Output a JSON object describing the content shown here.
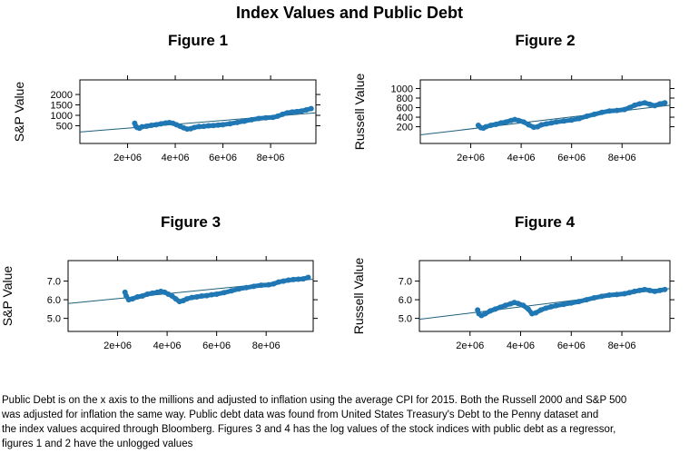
{
  "title": "Index Values and Public Debt",
  "caption": [
    "Public Debt is on the x axis to the millions and adjusted to inflation using the average CPI for 2015. Both the Russell 2000 and S&P 500",
    "was adjusted for inflation the same way. Public debt data was found from United States Treasury's Debt to the Penny dataset and",
    "the index values acquired through Bloomberg. Figures 3 and 4 has the log values of the stock indices with public debt as a regressor,",
    "figures 1 and 2 have the unlogged values"
  ],
  "colors": {
    "series": "#1f77b4",
    "fit_line": "#1f5f7a",
    "axes": "#000000"
  },
  "chart_data": [
    {
      "type": "scatter",
      "title": "Figure 1",
      "xlabel": "",
      "ylabel": "S&P Value",
      "xlim": [
        0,
        9900000
      ],
      "ylim": [
        -350,
        2700
      ],
      "xticks": [
        2000000,
        4000000,
        6000000,
        8000000
      ],
      "xtick_labels": [
        "2e+06",
        "4e+06",
        "6e+06",
        "8e+06"
      ],
      "yticks": [
        500,
        1000,
        1500,
        2000
      ],
      "ytick_labels": [
        "500",
        "1000",
        "1500",
        "2000"
      ],
      "fit_line": {
        "x": [
          0,
          9900000
        ],
        "y": [
          200,
          1120
        ]
      },
      "points": [
        [
          2300000,
          620
        ],
        [
          2350000,
          470
        ],
        [
          2400000,
          420
        ],
        [
          2500000,
          380
        ],
        [
          2600000,
          450
        ],
        [
          2800000,
          480
        ],
        [
          3000000,
          520
        ],
        [
          3200000,
          550
        ],
        [
          3400000,
          590
        ],
        [
          3600000,
          630
        ],
        [
          3750000,
          650
        ],
        [
          3900000,
          620
        ],
        [
          4050000,
          550
        ],
        [
          4200000,
          480
        ],
        [
          4350000,
          400
        ],
        [
          4500000,
          340
        ],
        [
          4650000,
          360
        ],
        [
          4800000,
          420
        ],
        [
          5000000,
          460
        ],
        [
          5200000,
          470
        ],
        [
          5400000,
          500
        ],
        [
          5600000,
          510
        ],
        [
          5800000,
          530
        ],
        [
          6000000,
          550
        ],
        [
          6300000,
          600
        ],
        [
          6600000,
          660
        ],
        [
          6900000,
          720
        ],
        [
          7200000,
          790
        ],
        [
          7500000,
          850
        ],
        [
          7800000,
          880
        ],
        [
          8100000,
          900
        ],
        [
          8300000,
          960
        ],
        [
          8500000,
          1050
        ],
        [
          8700000,
          1120
        ],
        [
          8900000,
          1160
        ],
        [
          9100000,
          1180
        ],
        [
          9300000,
          1210
        ],
        [
          9500000,
          1260
        ],
        [
          9700000,
          1320
        ]
      ]
    },
    {
      "type": "scatter",
      "title": "Figure 2",
      "xlabel": "",
      "ylabel": "Russell Value",
      "xlim": [
        0,
        9900000
      ],
      "ylim": [
        -150,
        1180
      ],
      "xticks": [
        2000000,
        4000000,
        6000000,
        8000000
      ],
      "xtick_labels": [
        "2e+06",
        "4e+06",
        "6e+06",
        "8e+06"
      ],
      "yticks": [
        200,
        400,
        600,
        800,
        1000
      ],
      "ytick_labels": [
        "200",
        "400",
        "600",
        "800",
        "1000"
      ],
      "fit_line": {
        "x": [
          0,
          9900000
        ],
        "y": [
          30,
          650
        ]
      },
      "points": [
        [
          2300000,
          230
        ],
        [
          2400000,
          180
        ],
        [
          2500000,
          170
        ],
        [
          2600000,
          200
        ],
        [
          2800000,
          230
        ],
        [
          3000000,
          250
        ],
        [
          3200000,
          280
        ],
        [
          3400000,
          300
        ],
        [
          3600000,
          330
        ],
        [
          3750000,
          350
        ],
        [
          3900000,
          330
        ],
        [
          4100000,
          300
        ],
        [
          4300000,
          240
        ],
        [
          4500000,
          190
        ],
        [
          4650000,
          200
        ],
        [
          4800000,
          240
        ],
        [
          5000000,
          260
        ],
        [
          5200000,
          280
        ],
        [
          5400000,
          300
        ],
        [
          5700000,
          320
        ],
        [
          6000000,
          340
        ],
        [
          6300000,
          370
        ],
        [
          6600000,
          420
        ],
        [
          6900000,
          460
        ],
        [
          7200000,
          500
        ],
        [
          7500000,
          530
        ],
        [
          7800000,
          540
        ],
        [
          8100000,
          560
        ],
        [
          8300000,
          600
        ],
        [
          8500000,
          650
        ],
        [
          8700000,
          680
        ],
        [
          8900000,
          700
        ],
        [
          9100000,
          670
        ],
        [
          9300000,
          640
        ],
        [
          9500000,
          680
        ],
        [
          9700000,
          700
        ]
      ]
    },
    {
      "type": "scatter",
      "title": "Figure 3",
      "xlabel": "",
      "ylabel": "S&P Value",
      "xlim": [
        0,
        9900000
      ],
      "ylim": [
        4.3,
        8.1
      ],
      "xticks": [
        2000000,
        4000000,
        6000000,
        8000000
      ],
      "xtick_labels": [
        "2e+06",
        "4e+06",
        "6e+06",
        "8e+06"
      ],
      "yticks": [
        5.0,
        6.0,
        7.0
      ],
      "ytick_labels": [
        "5.0",
        "6.0",
        "7.0"
      ],
      "fit_line": {
        "x": [
          0,
          9900000
        ],
        "y": [
          5.8,
          7.1
        ]
      },
      "points": [
        [
          2300000,
          6.4
        ],
        [
          2350000,
          6.2
        ],
        [
          2450000,
          6.0
        ],
        [
          2600000,
          6.05
        ],
        [
          2800000,
          6.15
        ],
        [
          3000000,
          6.2
        ],
        [
          3200000,
          6.3
        ],
        [
          3400000,
          6.35
        ],
        [
          3600000,
          6.4
        ],
        [
          3750000,
          6.45
        ],
        [
          3900000,
          6.4
        ],
        [
          4050000,
          6.3
        ],
        [
          4200000,
          6.2
        ],
        [
          4350000,
          6.05
        ],
        [
          4500000,
          5.9
        ],
        [
          4650000,
          5.95
        ],
        [
          4800000,
          6.05
        ],
        [
          5000000,
          6.12
        ],
        [
          5200000,
          6.15
        ],
        [
          5400000,
          6.2
        ],
        [
          5600000,
          6.22
        ],
        [
          5800000,
          6.27
        ],
        [
          6000000,
          6.3
        ],
        [
          6300000,
          6.38
        ],
        [
          6600000,
          6.48
        ],
        [
          6900000,
          6.58
        ],
        [
          7200000,
          6.65
        ],
        [
          7500000,
          6.72
        ],
        [
          7800000,
          6.78
        ],
        [
          8100000,
          6.8
        ],
        [
          8300000,
          6.85
        ],
        [
          8500000,
          6.95
        ],
        [
          8700000,
          7.0
        ],
        [
          8900000,
          7.05
        ],
        [
          9100000,
          7.08
        ],
        [
          9300000,
          7.1
        ],
        [
          9500000,
          7.12
        ],
        [
          9700000,
          7.2
        ]
      ]
    },
    {
      "type": "scatter",
      "title": "Figure 4",
      "xlabel": "",
      "ylabel": "Russell Value",
      "xlim": [
        0,
        9900000
      ],
      "ylim": [
        4.3,
        8.1
      ],
      "xticks": [
        2000000,
        4000000,
        6000000,
        8000000
      ],
      "xtick_labels": [
        "2e+06",
        "4e+06",
        "6e+06",
        "8e+06"
      ],
      "yticks": [
        5.0,
        6.0,
        7.0
      ],
      "ytick_labels": [
        "5.0",
        "6.0",
        "7.0"
      ],
      "fit_line": {
        "x": [
          0,
          9900000
        ],
        "y": [
          4.95,
          6.6
        ]
      },
      "points": [
        [
          2300000,
          5.45
        ],
        [
          2350000,
          5.25
        ],
        [
          2450000,
          5.15
        ],
        [
          2600000,
          5.25
        ],
        [
          2800000,
          5.4
        ],
        [
          3000000,
          5.5
        ],
        [
          3200000,
          5.6
        ],
        [
          3400000,
          5.7
        ],
        [
          3600000,
          5.78
        ],
        [
          3750000,
          5.85
        ],
        [
          3900000,
          5.8
        ],
        [
          4100000,
          5.7
        ],
        [
          4300000,
          5.5
        ],
        [
          4450000,
          5.25
        ],
        [
          4600000,
          5.3
        ],
        [
          4800000,
          5.45
        ],
        [
          5000000,
          5.55
        ],
        [
          5200000,
          5.62
        ],
        [
          5400000,
          5.68
        ],
        [
          5700000,
          5.75
        ],
        [
          6000000,
          5.82
        ],
        [
          6300000,
          5.9
        ],
        [
          6600000,
          6.0
        ],
        [
          6900000,
          6.1
        ],
        [
          7200000,
          6.18
        ],
        [
          7500000,
          6.25
        ],
        [
          7800000,
          6.28
        ],
        [
          8100000,
          6.32
        ],
        [
          8300000,
          6.38
        ],
        [
          8500000,
          6.45
        ],
        [
          8700000,
          6.5
        ],
        [
          8900000,
          6.55
        ],
        [
          9100000,
          6.5
        ],
        [
          9300000,
          6.45
        ],
        [
          9500000,
          6.5
        ],
        [
          9700000,
          6.55
        ]
      ]
    }
  ]
}
